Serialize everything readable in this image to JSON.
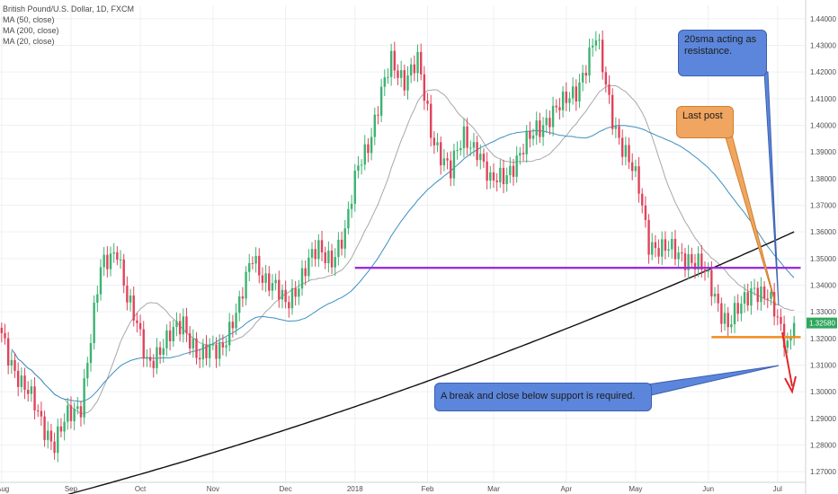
{
  "chart_data": {
    "type": "candlestick",
    "title": "British Pound/U.S. Dollar, 1D, FXCM",
    "indicators": [
      "MA (50, close)",
      "MA (200, close)",
      "MA (20, close)"
    ],
    "x_tick_labels": [
      "Aug",
      "Sep",
      "Oct",
      "Nov",
      "Dec",
      "2018",
      "Feb",
      "Mar",
      "Apr",
      "May",
      "Jun",
      "Jul"
    ],
    "x_tick_index": [
      0,
      21,
      42,
      64,
      86,
      107,
      129,
      149,
      171,
      192,
      214,
      235
    ],
    "y_ticks": [
      1.27,
      1.28,
      1.29,
      1.3,
      1.31,
      1.32,
      1.33,
      1.34,
      1.35,
      1.36,
      1.37,
      1.38,
      1.39,
      1.4,
      1.41,
      1.42,
      1.43,
      1.44
    ],
    "y_tick_labels": [
      "1.27000",
      "1.28000",
      "1.29000",
      "1.30000",
      "1.31000",
      "1.32000",
      "1.33000",
      "1.34000",
      "1.35000",
      "1.36000",
      "1.37000",
      "1.38000",
      "1.39000",
      "1.40000",
      "1.41000",
      "1.42000",
      "1.43000",
      "1.44000"
    ],
    "ylim": [
      1.266,
      1.445
    ],
    "last_price": 1.3258,
    "last_price_label": "1.32580",
    "grid": true,
    "close_anchors": [
      [
        0,
        1.322
      ],
      [
        6,
        1.302
      ],
      [
        10,
        1.295
      ],
      [
        16,
        1.28
      ],
      [
        20,
        1.29
      ],
      [
        24,
        1.296
      ],
      [
        30,
        1.345
      ],
      [
        35,
        1.355
      ],
      [
        38,
        1.335
      ],
      [
        44,
        1.312
      ],
      [
        50,
        1.318
      ],
      [
        55,
        1.327
      ],
      [
        60,
        1.312
      ],
      [
        66,
        1.317
      ],
      [
        72,
        1.331
      ],
      [
        76,
        1.352
      ],
      [
        80,
        1.342
      ],
      [
        86,
        1.333
      ],
      [
        92,
        1.346
      ],
      [
        96,
        1.353
      ],
      [
        100,
        1.351
      ],
      [
        104,
        1.358
      ],
      [
        108,
        1.386
      ],
      [
        112,
        1.397
      ],
      [
        118,
        1.424
      ],
      [
        122,
        1.418
      ],
      [
        126,
        1.423
      ],
      [
        130,
        1.398
      ],
      [
        136,
        1.382
      ],
      [
        140,
        1.396
      ],
      [
        144,
        1.392
      ],
      [
        148,
        1.377
      ],
      [
        152,
        1.382
      ],
      [
        157,
        1.388
      ],
      [
        162,
        1.399
      ],
      [
        166,
        1.404
      ],
      [
        170,
        1.407
      ],
      [
        174,
        1.414
      ],
      [
        178,
        1.426
      ],
      [
        180,
        1.432
      ],
      [
        182,
        1.421
      ],
      [
        185,
        1.404
      ],
      [
        188,
        1.392
      ],
      [
        193,
        1.376
      ],
      [
        196,
        1.357
      ],
      [
        200,
        1.353
      ],
      [
        204,
        1.352
      ],
      [
        208,
        1.351
      ],
      [
        212,
        1.346
      ],
      [
        216,
        1.336
      ],
      [
        220,
        1.326
      ],
      [
        224,
        1.331
      ],
      [
        228,
        1.34
      ],
      [
        232,
        1.336
      ],
      [
        236,
        1.322
      ],
      [
        238,
        1.318
      ],
      [
        240,
        1.3258
      ]
    ],
    "horizontal_lines": [
      {
        "name": "resistance",
        "value": 1.3465,
        "x_range": [
          107,
          242
        ],
        "color": "#9b2ddb"
      },
      {
        "name": "support",
        "value": 1.3205,
        "x_range": [
          215,
          242
        ],
        "color": "#f28a17"
      }
    ],
    "annotations": [
      "20sma acting as resistance.",
      "Last post",
      "A break and close below support is required."
    ]
  },
  "colors": {
    "up": "#3cb371",
    "down": "#e0435b",
    "ma20": "#a8a8a8",
    "ma50": "#3d8fc2",
    "ma200": "#111111",
    "last_price_badge": "#2fa75c",
    "blue_note": "#5b86db",
    "orange_note": "#f0a560"
  }
}
